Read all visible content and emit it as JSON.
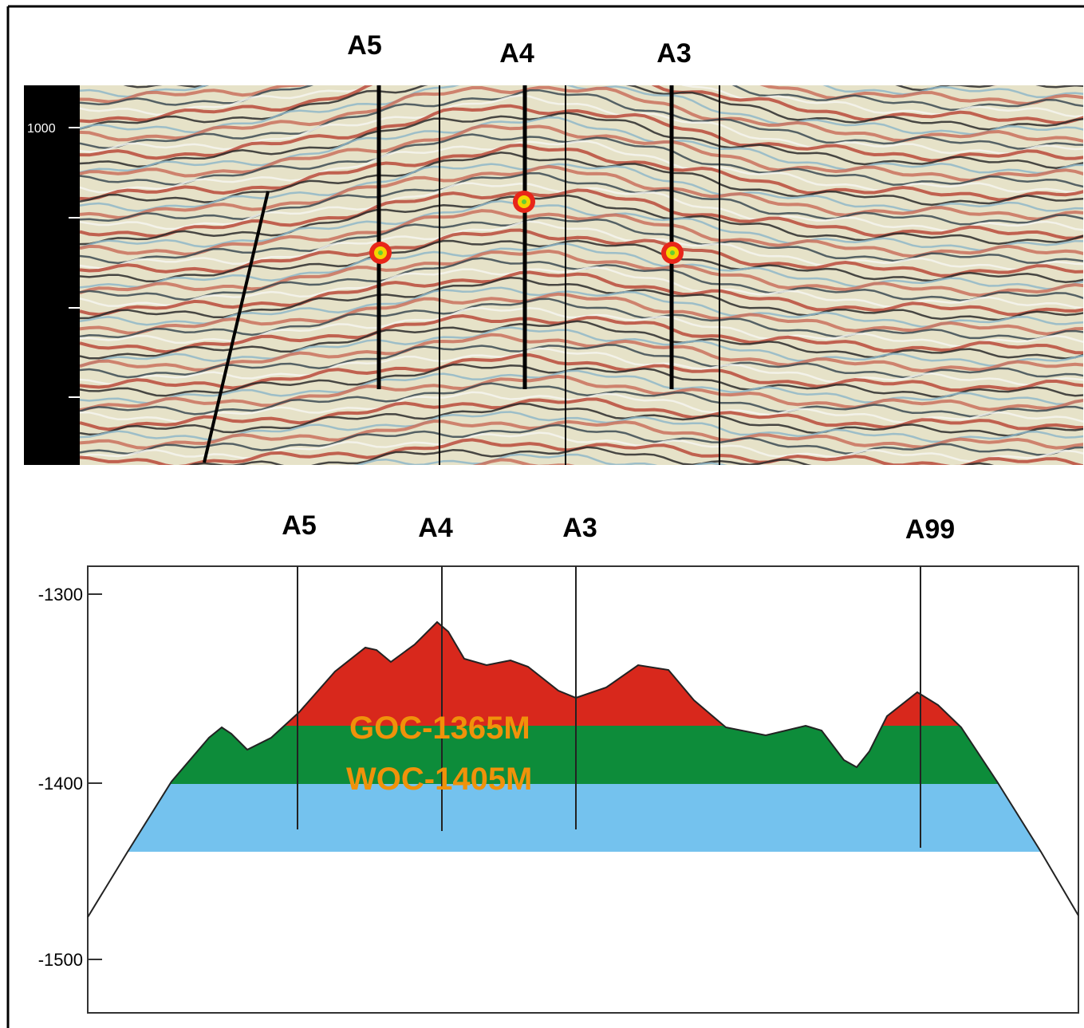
{
  "seismic": {
    "well_labels": [
      "A5",
      "A4",
      "A3"
    ],
    "depth_tick": 1000
  },
  "section": {
    "well_labels": [
      "A5",
      "A4",
      "A3",
      "A99"
    ],
    "yticks": [
      -1300,
      -1400,
      -1500
    ],
    "contacts": [
      "GOC-1365M",
      "WOC-1405M"
    ]
  }
}
